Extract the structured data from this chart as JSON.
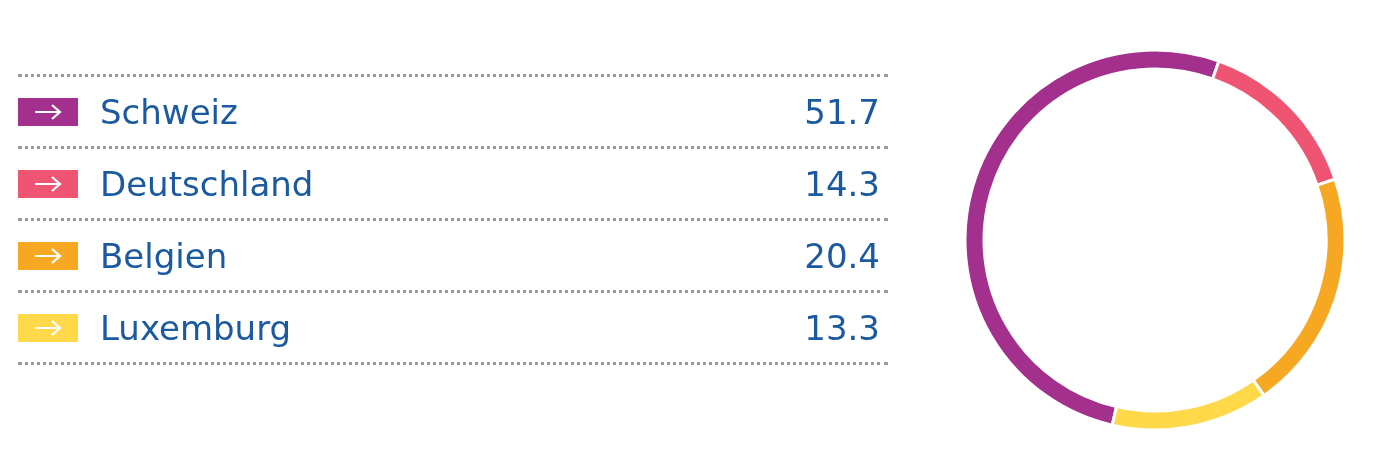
{
  "chart_data": {
    "type": "donut",
    "categories": [
      "Schweiz",
      "Deutschland",
      "Belgien",
      "Luxemburg"
    ],
    "values": [
      51.7,
      14.3,
      20.4,
      13.3
    ],
    "colors": [
      "#a3308c",
      "#ef5472",
      "#f7a823",
      "#ffd94a"
    ],
    "data_labels": true,
    "legend": "left"
  }
}
